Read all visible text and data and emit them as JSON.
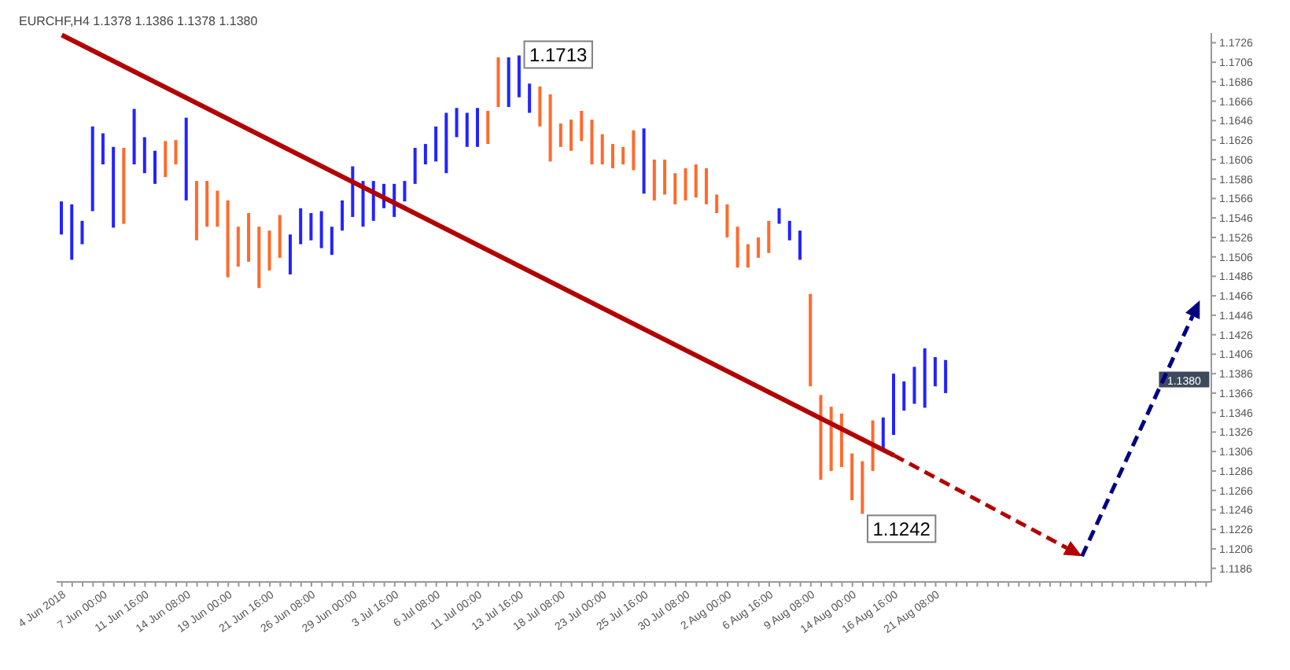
{
  "chart_data": {
    "type": "bar",
    "title": "EURCHF,H4 1.1378 1.1386 1.1378 1.1380",
    "categories": [
      "4 Jun 2018",
      null,
      null,
      null,
      "7 Jun 00:00",
      null,
      null,
      null,
      "11 Jun 16:00",
      null,
      null,
      null,
      "14 Jun 08:00",
      null,
      null,
      null,
      "19 Jun 00:00",
      null,
      null,
      null,
      "21 Jun 16:00",
      null,
      null,
      null,
      "26 Jun 08:00",
      null,
      null,
      null,
      "29 Jun 00:00",
      null,
      null,
      null,
      "3 Jul 16:00",
      null,
      null,
      null,
      "6 Jul 08:00",
      null,
      null,
      null,
      "11 Jul 00:00",
      null,
      null,
      null,
      "13 Jul 16:00",
      null,
      null,
      null,
      "18 Jul 08:00",
      null,
      null,
      null,
      "23 Jul 00:00",
      null,
      null,
      null,
      "25 Jul 16:00",
      null,
      null,
      null,
      "30 Jul 08:00",
      null,
      null,
      null,
      "2 Aug 00:00",
      null,
      null,
      null,
      "6 Aug 16:00",
      null,
      null,
      null,
      "9 Aug 08:00",
      null,
      null,
      null,
      "14 Aug 00:00",
      null,
      null,
      null,
      "16 Aug 16:00",
      null,
      null,
      null,
      "21 Aug 08:00",
      null,
      null,
      null,
      null,
      null,
      null,
      null,
      null,
      null,
      null,
      null,
      null,
      null,
      null,
      null,
      null,
      null,
      null,
      null,
      null,
      null,
      null,
      null,
      null,
      null,
      null
    ],
    "series": [
      {
        "color": "#2323ff",
        "base": [
          1.1529,
          1.1503,
          1.1519,
          1.1553,
          1.1601,
          1.1536,
          null,
          1.1601,
          1.1592,
          1.1581,
          null,
          null,
          1.1564,
          null,
          null,
          null,
          null,
          null,
          null,
          null,
          null,
          null,
          1.1488,
          1.1519,
          1.1523,
          1.1515,
          1.1508,
          1.1533,
          1.1547,
          1.1537,
          1.1543,
          1.1556,
          1.1547,
          1.1563,
          1.1581,
          1.1601,
          1.1604,
          1.1592,
          1.1629,
          1.1619,
          1.1619,
          null,
          null,
          1.166,
          1.167,
          1.1654,
          null,
          null,
          null,
          null,
          null,
          null,
          null,
          null,
          null,
          null,
          1.1571,
          null,
          null,
          null,
          null,
          null,
          null,
          null,
          null,
          null,
          null,
          null,
          null,
          1.154,
          1.1523,
          1.1503,
          null,
          null,
          null,
          null,
          null,
          null,
          null,
          1.1309,
          1.1323,
          1.1348,
          1.1355,
          1.1351,
          1.1373,
          1.1366,
          null,
          null,
          null,
          null,
          null,
          null,
          null,
          null,
          null,
          null,
          null,
          null,
          null,
          null,
          null,
          null,
          null,
          null,
          null,
          null,
          null,
          null,
          null,
          null,
          null
        ],
        "values": [
          0.0034,
          0.0057,
          0.0024,
          0.0087,
          0.0032,
          0.0083,
          null,
          0.0057,
          0.0037,
          0.0034,
          null,
          null,
          0.0085,
          null,
          null,
          null,
          null,
          null,
          null,
          null,
          null,
          null,
          0.0041,
          0.0037,
          0.0028,
          0.0038,
          0.0029,
          0.0031,
          0.0052,
          0.0047,
          0.0041,
          0.0025,
          0.0034,
          0.0021,
          0.0037,
          0.0021,
          0.0036,
          0.0062,
          0.003,
          0.0035,
          0.004,
          null,
          null,
          0.0051,
          0.0043,
          0.003,
          null,
          null,
          null,
          null,
          null,
          null,
          null,
          null,
          null,
          null,
          0.0067,
          null,
          null,
          null,
          null,
          null,
          null,
          null,
          null,
          null,
          null,
          null,
          null,
          0.0016,
          0.002,
          0.003,
          null,
          null,
          null,
          null,
          null,
          null,
          null,
          0.0032,
          0.0063,
          0.003,
          0.0038,
          0.0061,
          0.003,
          0.0034,
          null,
          null,
          null,
          null,
          null,
          null,
          null,
          null,
          null,
          null,
          null,
          null,
          null,
          null,
          null,
          null,
          null,
          null,
          null,
          null,
          null,
          null,
          null,
          null,
          null
        ]
      },
      {
        "color": "#ff6a2b",
        "base": [
          null,
          null,
          null,
          null,
          null,
          null,
          1.154,
          null,
          null,
          null,
          1.1588,
          1.1601,
          null,
          1.1523,
          1.1537,
          1.1537,
          1.1485,
          1.1496,
          1.1501,
          1.1474,
          1.1492,
          1.1505,
          null,
          null,
          null,
          null,
          null,
          null,
          null,
          null,
          null,
          null,
          null,
          null,
          null,
          null,
          null,
          null,
          null,
          null,
          null,
          1.1622,
          1.166,
          null,
          null,
          null,
          1.164,
          1.1604,
          1.1619,
          1.1615,
          1.1625,
          1.1601,
          1.1601,
          1.1597,
          1.1601,
          1.1595,
          null,
          1.1564,
          1.157,
          1.156,
          1.1564,
          1.1567,
          1.156,
          1.1551,
          1.1526,
          1.1495,
          1.1495,
          1.1505,
          1.151,
          null,
          null,
          null,
          1.1373,
          1.1277,
          1.1286,
          1.129,
          1.1256,
          1.1242,
          1.1286,
          null,
          null,
          null,
          null,
          null,
          null,
          null,
          null,
          null,
          null,
          null,
          null,
          null,
          null,
          null,
          null,
          null,
          null,
          null,
          null,
          null,
          null,
          null,
          null,
          null,
          null,
          null,
          null,
          null,
          null,
          null,
          null
        ],
        "values": [
          null,
          null,
          null,
          null,
          null,
          null,
          0.0078,
          null,
          null,
          null,
          0.0037,
          0.0025,
          null,
          0.0061,
          0.0047,
          0.0037,
          0.0079,
          0.0041,
          0.005,
          0.0063,
          0.0041,
          0.0044,
          null,
          null,
          null,
          null,
          null,
          null,
          null,
          null,
          null,
          null,
          null,
          null,
          null,
          null,
          null,
          null,
          null,
          null,
          null,
          0.0034,
          0.0051,
          null,
          null,
          null,
          0.0041,
          0.0069,
          0.0024,
          0.0032,
          0.0031,
          0.0046,
          0.0031,
          0.0025,
          0.0018,
          0.0041,
          null,
          0.0042,
          0.0036,
          0.0032,
          0.0033,
          0.0034,
          0.0037,
          0.0019,
          0.0034,
          0.0042,
          0.0024,
          0.0021,
          0.0033,
          null,
          null,
          null,
          0.0095,
          0.0087,
          0.0066,
          0.0055,
          0.0048,
          0.0054,
          0.0052,
          null,
          null,
          null,
          null,
          null,
          null,
          null,
          null,
          null,
          null,
          null,
          null,
          null,
          null,
          null,
          null,
          null,
          null,
          null,
          null,
          null,
          null,
          null,
          null,
          null,
          null,
          null,
          null,
          null,
          null,
          null,
          null
        ]
      },
      {
        "type": "line",
        "color": "#b30000",
        "values": [
          1.1734,
          null,
          null,
          null,
          null,
          null,
          null,
          null,
          null,
          null,
          null,
          null,
          null,
          null,
          null,
          null,
          null,
          null,
          null,
          null,
          null,
          null,
          null,
          null,
          null,
          null,
          null,
          null,
          null,
          null,
          null,
          null,
          null,
          null,
          null,
          null,
          null,
          null,
          null,
          null,
          null,
          null,
          null,
          null,
          null,
          null,
          null,
          null,
          null,
          null,
          null,
          null,
          null,
          null,
          null,
          null,
          null,
          null,
          null,
          null,
          null,
          null,
          null,
          null,
          null,
          null,
          null,
          null,
          null,
          null,
          null,
          null,
          null,
          null,
          null,
          null,
          null,
          null,
          null,
          null,
          1.1302,
          null,
          null,
          null,
          null,
          null,
          null,
          null,
          null,
          null,
          null,
          null,
          null,
          null,
          null,
          null,
          null,
          null,
          null,
          null,
          null,
          null,
          null,
          null,
          null,
          null,
          null,
          null,
          null,
          null,
          null
        ]
      }
    ],
    "ylim": [
      1.1172,
      1.1736
    ],
    "yticks": [
      1.1186,
      1.1206,
      1.1226,
      1.1246,
      1.1266,
      1.1286,
      1.1306,
      1.1326,
      1.1346,
      1.1366,
      1.1386,
      1.1406,
      1.1426,
      1.1446,
      1.1466,
      1.1486,
      1.1506,
      1.1526,
      1.1546,
      1.1566,
      1.1586,
      1.1606,
      1.1626,
      1.1646,
      1.1666,
      1.1686,
      1.1706,
      1.1726
    ],
    "annotations": [
      {
        "text": "1.1713",
        "y": 1.1713
      },
      "1.1242",
      {
        "text": "1.1380",
        "y": 1.138
      }
    ]
  }
}
